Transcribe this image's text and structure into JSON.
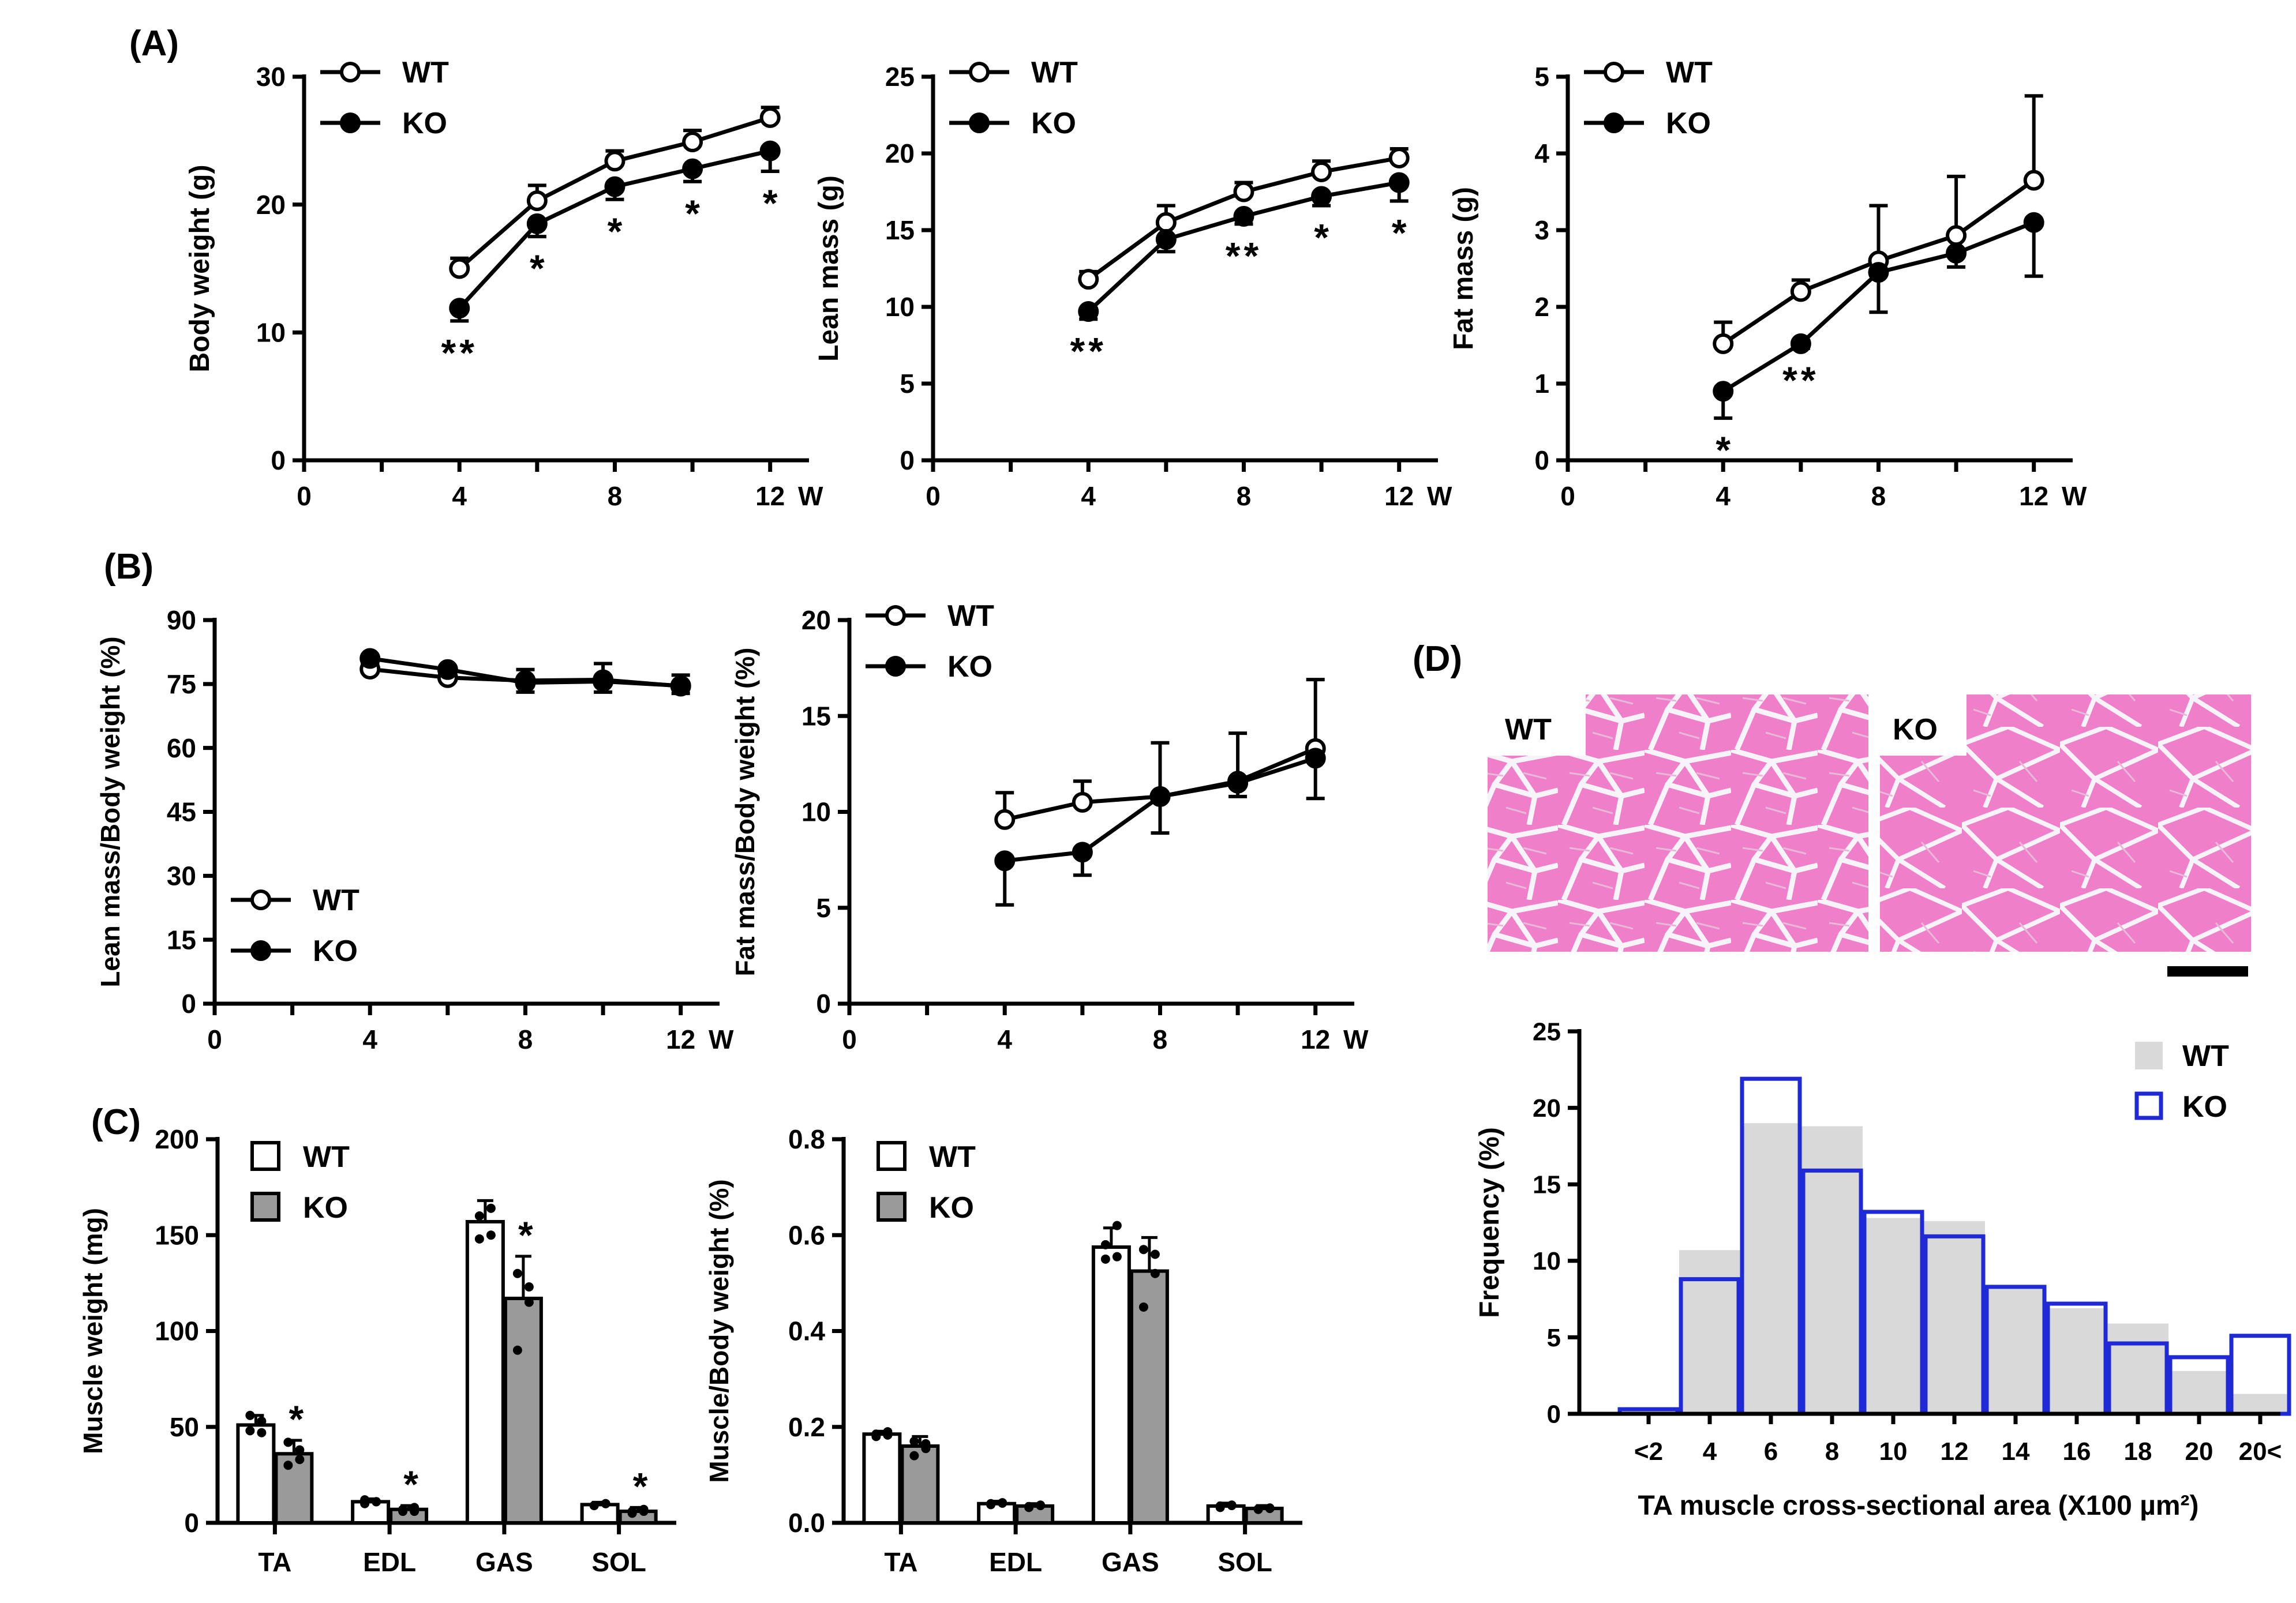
{
  "panel_labels": {
    "a": "(A)",
    "b": "(B)",
    "c": "(C)",
    "d": "(D)"
  },
  "micrograph": {
    "wt_label": "WT",
    "ko_label": "KO",
    "wt_color": "#f07fc9",
    "ko_color": "#f07fc9",
    "gap_color": "#f3f3f6"
  },
  "chart_data": [
    {
      "id": "A1",
      "type": "line",
      "ylabel": "Body weight (g)",
      "xlabel": "",
      "xlim": [
        0,
        13
      ],
      "ylim": [
        0,
        30
      ],
      "xticks": [
        0,
        4,
        8,
        12
      ],
      "yticks": [
        0,
        10,
        20,
        30
      ],
      "x_unit": "W",
      "x": [
        4,
        6,
        8,
        10,
        12
      ],
      "legend": "top-left",
      "series": [
        {
          "name": "WT",
          "marker": "open",
          "values": [
            15.0,
            20.3,
            23.4,
            24.9,
            26.8
          ],
          "err": [
            0.8,
            1.2,
            0.8,
            0.9,
            0.8
          ]
        },
        {
          "name": "KO",
          "marker": "filled",
          "values": [
            11.9,
            18.5,
            21.4,
            22.8,
            24.2
          ],
          "err": [
            1.0,
            1.0,
            1.0,
            1.0,
            1.6
          ]
        }
      ],
      "annotations": [
        {
          "x": 4,
          "text": "**"
        },
        {
          "x": 6,
          "text": "*"
        },
        {
          "x": 8,
          "text": "*"
        },
        {
          "x": 10,
          "text": "*"
        },
        {
          "x": 12,
          "text": "*"
        }
      ]
    },
    {
      "id": "A2",
      "type": "line",
      "ylabel": "Lean mass (g)",
      "xlabel": "",
      "xlim": [
        0,
        13
      ],
      "ylim": [
        0,
        25
      ],
      "xticks": [
        0,
        4,
        8,
        12
      ],
      "yticks": [
        0,
        5,
        10,
        15,
        20,
        25
      ],
      "x_unit": "W",
      "x": [
        4,
        6,
        8,
        10,
        12
      ],
      "legend": "top-left",
      "series": [
        {
          "name": "WT",
          "marker": "open",
          "values": [
            11.8,
            15.5,
            17.5,
            18.8,
            19.7
          ],
          "err": [
            0.5,
            1.1,
            0.6,
            0.7,
            0.6
          ]
        },
        {
          "name": "KO",
          "marker": "filled",
          "values": [
            9.7,
            14.4,
            15.9,
            17.2,
            18.1
          ],
          "err": [
            0.5,
            0.8,
            0.5,
            0.6,
            1.2
          ]
        }
      ],
      "annotations": [
        {
          "x": 4,
          "text": "**"
        },
        {
          "x": 8,
          "text": "**"
        },
        {
          "x": 10,
          "text": "*"
        },
        {
          "x": 12,
          "text": "*"
        }
      ]
    },
    {
      "id": "A3",
      "type": "line",
      "ylabel": "Fat mass (g)",
      "xlabel": "",
      "xlim": [
        0,
        13
      ],
      "ylim": [
        0,
        5
      ],
      "xticks": [
        0,
        4,
        8,
        12
      ],
      "yticks": [
        0,
        1,
        2,
        3,
        4,
        5
      ],
      "x_unit": "W",
      "x": [
        4,
        6,
        8,
        10,
        12
      ],
      "legend": "top-left",
      "series": [
        {
          "name": "WT",
          "marker": "open",
          "values": [
            1.52,
            2.2,
            2.6,
            2.93,
            3.65
          ],
          "err": [
            0.28,
            0.15,
            0.72,
            0.77,
            1.1
          ]
        },
        {
          "name": "KO",
          "marker": "filled",
          "values": [
            0.9,
            1.52,
            2.45,
            2.7,
            3.1
          ],
          "err": [
            0.35,
            0.06,
            0.52,
            0.18,
            0.7
          ]
        }
      ],
      "annotations": [
        {
          "x": 4,
          "text": "*"
        },
        {
          "x": 6,
          "text": "**"
        }
      ]
    },
    {
      "id": "B1",
      "type": "line",
      "ylabel": "Lean mass/Body weight (%)",
      "xlabel": "",
      "xlim": [
        0,
        13
      ],
      "ylim": [
        0,
        90
      ],
      "xticks": [
        0,
        4,
        8,
        12
      ],
      "yticks": [
        0,
        15,
        30,
        45,
        60,
        75,
        90
      ],
      "x_unit": "W",
      "x": [
        4,
        6,
        8,
        10,
        12
      ],
      "legend": "bottom-left",
      "series": [
        {
          "name": "WT",
          "marker": "open",
          "values": [
            78.5,
            76.5,
            75.8,
            76.0,
            74.5
          ],
          "err": [
            1.0,
            1.2,
            2.6,
            3.8,
            2.6
          ]
        },
        {
          "name": "KO",
          "marker": "filled",
          "values": [
            81.0,
            78.4,
            75.3,
            75.6,
            74.6
          ],
          "err": [
            1.0,
            1.0,
            2.2,
            2.5,
            1.8
          ]
        }
      ],
      "annotations": []
    },
    {
      "id": "B2",
      "type": "line",
      "ylabel": "Fat mass/Body weight (%)",
      "xlabel": "",
      "xlim": [
        0,
        13
      ],
      "ylim": [
        0,
        20
      ],
      "xticks": [
        0,
        4,
        8,
        12
      ],
      "yticks": [
        0,
        5,
        10,
        15,
        20
      ],
      "x_unit": "W",
      "x": [
        4,
        6,
        8,
        10,
        12
      ],
      "legend": "top-left",
      "series": [
        {
          "name": "WT",
          "marker": "open",
          "values": [
            9.6,
            10.5,
            10.8,
            11.6,
            13.3
          ],
          "err": [
            1.4,
            1.1,
            2.8,
            2.5,
            3.6
          ]
        },
        {
          "name": "KO",
          "marker": "filled",
          "values": [
            7.45,
            7.9,
            10.8,
            11.5,
            12.8
          ],
          "err": [
            2.3,
            1.2,
            1.9,
            0.7,
            2.1
          ]
        }
      ],
      "annotations": []
    },
    {
      "id": "C1",
      "type": "bar",
      "ylabel": "Muscle weight (mg)",
      "xlabel": "",
      "ylim": [
        0,
        200
      ],
      "yticks": [
        0,
        50,
        100,
        150,
        200
      ],
      "categories": [
        "TA",
        "EDL",
        "GAS",
        "SOL"
      ],
      "legend": "top-left",
      "series": [
        {
          "name": "WT",
          "fill": "#ffffff",
          "values": [
            51,
            11,
            157,
            9.5
          ],
          "err": [
            5,
            1.5,
            11,
            1.2
          ],
          "points": [
            [
              48,
              53,
              56,
              47
            ],
            [
              10,
              11,
              12,
              11
            ],
            [
              148,
              164,
              160,
              150
            ],
            [
              9,
              10,
              9,
              10
            ]
          ]
        },
        {
          "name": "KO",
          "fill": "#9a9a9a",
          "values": [
            36,
            7,
            117,
            6
          ],
          "err": [
            7,
            2,
            22,
            2
          ],
          "points": [
            [
              30,
              38,
              42,
              33
            ],
            [
              6,
              8,
              7,
              6
            ],
            [
              90,
              123,
              130,
              115
            ],
            [
              5,
              7,
              6,
              6
            ]
          ]
        }
      ],
      "annotations": [
        {
          "category": "TA",
          "series": "KO",
          "text": "*"
        },
        {
          "category": "EDL",
          "series": "KO",
          "text": "*"
        },
        {
          "category": "GAS",
          "series": "KO",
          "text": "*"
        },
        {
          "category": "SOL",
          "series": "KO",
          "text": "*"
        }
      ]
    },
    {
      "id": "C2",
      "type": "bar",
      "ylabel": "Muscle/Body weight (%)",
      "xlabel": "",
      "ylim": [
        0,
        0.8
      ],
      "yticks": [
        0.0,
        0.2,
        0.4,
        0.6,
        0.8
      ],
      "categories": [
        "TA",
        "EDL",
        "GAS",
        "SOL"
      ],
      "legend": "top-left",
      "series": [
        {
          "name": "WT",
          "fill": "#ffffff",
          "values": [
            0.185,
            0.04,
            0.575,
            0.035
          ],
          "err": [
            0.006,
            0.005,
            0.04,
            0.006
          ],
          "points": [
            [
              0.18,
              0.19,
              0.185,
              0.183
            ],
            [
              0.04,
              0.042,
              0.038,
              0.041
            ],
            [
              0.55,
              0.62,
              0.58,
              0.555
            ],
            [
              0.032,
              0.037,
              0.035,
              0.036
            ]
          ]
        },
        {
          "name": "KO",
          "fill": "#9a9a9a",
          "values": [
            0.16,
            0.035,
            0.525,
            0.03
          ],
          "err": [
            0.02,
            0.005,
            0.07,
            0.006
          ],
          "points": [
            [
              0.14,
              0.165,
              0.17,
              0.155
            ],
            [
              0.032,
              0.036,
              0.034,
              0.037
            ],
            [
              0.45,
              0.56,
              0.57,
              0.52
            ],
            [
              0.028,
              0.031,
              0.029,
              0.03
            ]
          ]
        }
      ],
      "annotations": []
    },
    {
      "id": "D",
      "type": "bar",
      "subtype": "histogram",
      "ylabel": "Frequency (%)",
      "xlabel": "TA muscle cross-sectional area (X100 µm²)",
      "ylim": [
        0,
        25
      ],
      "yticks": [
        0,
        5,
        10,
        15,
        20,
        25
      ],
      "categories": [
        "<2",
        "4",
        "6",
        "8",
        "10",
        "12",
        "14",
        "16",
        "18",
        "20",
        "20<"
      ],
      "legend": "top-right",
      "series": [
        {
          "name": "WT",
          "style": "filled-grey",
          "color": "#d9d9d9",
          "values": [
            0.3,
            10.7,
            19.0,
            18.8,
            12.8,
            12.6,
            8.3,
            6.9,
            5.9,
            2.8,
            1.3
          ]
        },
        {
          "name": "KO",
          "style": "blue-outline",
          "color": "#1f2ad6",
          "values": [
            0.3,
            8.8,
            21.9,
            15.9,
            13.2,
            11.6,
            8.3,
            7.2,
            4.6,
            3.7,
            5.1
          ]
        }
      ]
    }
  ]
}
